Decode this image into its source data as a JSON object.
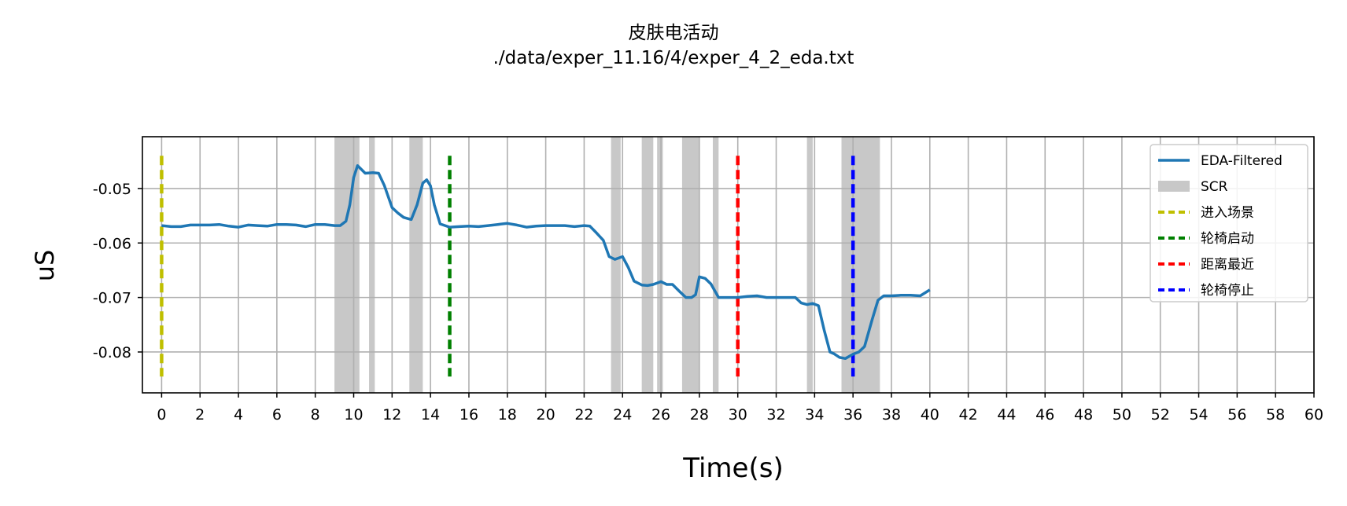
{
  "chart_data": {
    "type": "line",
    "title": "皮肤电活动",
    "subtitle": "./data/exper_11.16/4/exper_4_2_eda.txt",
    "xlabel": "Time(s)",
    "ylabel": "uS",
    "xlim": [
      -1,
      60
    ],
    "ylim": [
      -0.0875,
      -0.0405
    ],
    "xticks": [
      0,
      2,
      4,
      6,
      8,
      10,
      12,
      14,
      16,
      18,
      20,
      22,
      24,
      26,
      28,
      30,
      32,
      34,
      36,
      38,
      40,
      42,
      44,
      46,
      48,
      50,
      52,
      54,
      56,
      58,
      60
    ],
    "yticks": [
      -0.05,
      -0.06,
      -0.07,
      -0.08
    ],
    "ytick_labels": [
      "-0.05",
      "-0.06",
      "-0.07",
      "-0.08"
    ],
    "grid": true,
    "legend_position": "top-right",
    "series": [
      {
        "name": "EDA-Filtered",
        "color": "#1f77b4",
        "x": [
          0,
          0.5,
          1,
          1.5,
          2,
          2.5,
          3,
          3.5,
          4,
          4.5,
          5,
          5.5,
          6,
          6.5,
          7,
          7.5,
          8,
          8.5,
          9,
          9.3,
          9.6,
          9.8,
          10,
          10.2,
          10.4,
          10.6,
          11,
          11.3,
          11.6,
          12,
          12.3,
          12.6,
          13,
          13.3,
          13.6,
          13.8,
          14,
          14.2,
          14.5,
          15,
          15.5,
          16,
          16.5,
          17,
          17.5,
          18,
          18.5,
          19,
          19.5,
          20,
          20.5,
          21,
          21.5,
          22,
          22.3,
          22.6,
          23,
          23.3,
          23.6,
          24,
          24.3,
          24.6,
          25,
          25.3,
          25.6,
          26,
          26.3,
          26.6,
          27,
          27.3,
          27.6,
          27.8,
          28,
          28.3,
          28.6,
          29,
          29.5,
          30,
          30.5,
          31,
          31.5,
          32,
          32.5,
          33,
          33.3,
          33.6,
          33.9,
          34.2,
          34.5,
          34.8,
          35,
          35.3,
          35.6,
          36,
          36.3,
          36.6,
          37,
          37.3,
          37.6,
          38,
          38.5,
          39,
          39.5,
          40
        ],
        "values": [
          -0.0568,
          -0.057,
          -0.057,
          -0.0567,
          -0.0567,
          -0.0567,
          -0.0566,
          -0.0569,
          -0.0571,
          -0.0567,
          -0.0568,
          -0.0569,
          -0.0566,
          -0.0566,
          -0.0567,
          -0.057,
          -0.0566,
          -0.0566,
          -0.0568,
          -0.0568,
          -0.056,
          -0.053,
          -0.048,
          -0.0458,
          -0.0465,
          -0.0472,
          -0.0471,
          -0.0472,
          -0.0495,
          -0.0535,
          -0.0545,
          -0.0553,
          -0.0557,
          -0.053,
          -0.049,
          -0.0484,
          -0.0495,
          -0.053,
          -0.0565,
          -0.0571,
          -0.057,
          -0.0569,
          -0.057,
          -0.0568,
          -0.0566,
          -0.0564,
          -0.0567,
          -0.0571,
          -0.0569,
          -0.0568,
          -0.0568,
          -0.0568,
          -0.057,
          -0.0568,
          -0.0569,
          -0.058,
          -0.0595,
          -0.0625,
          -0.063,
          -0.0625,
          -0.0645,
          -0.067,
          -0.0677,
          -0.0678,
          -0.0676,
          -0.0671,
          -0.0676,
          -0.0676,
          -0.069,
          -0.07,
          -0.07,
          -0.0695,
          -0.0662,
          -0.0665,
          -0.0675,
          -0.07,
          -0.07,
          -0.07,
          -0.0698,
          -0.0697,
          -0.07,
          -0.07,
          -0.07,
          -0.07,
          -0.071,
          -0.0713,
          -0.0711,
          -0.0715,
          -0.076,
          -0.08,
          -0.0803,
          -0.081,
          -0.0812,
          -0.0804,
          -0.08,
          -0.079,
          -0.074,
          -0.0705,
          -0.0697,
          -0.0697,
          -0.0696,
          -0.0696,
          -0.0697,
          -0.0686
        ]
      }
    ],
    "scr_regions": {
      "name": "SCR",
      "color": "#c8c8c8",
      "spans": [
        [
          9.0,
          10.3
        ],
        [
          10.8,
          11.1
        ],
        [
          12.9,
          13.6
        ],
        [
          23.4,
          23.9
        ],
        [
          25.0,
          25.6
        ],
        [
          25.8,
          26.1
        ],
        [
          27.1,
          28.0
        ],
        [
          28.7,
          29.0
        ],
        [
          33.6,
          33.9
        ],
        [
          35.4,
          37.4
        ]
      ]
    },
    "markers": [
      {
        "name": "进入场景",
        "x": 0,
        "color": "#bfbf00"
      },
      {
        "name": "轮椅启动",
        "x": 15,
        "color": "#008000"
      },
      {
        "name": "距离最近",
        "x": 30,
        "color": "#ff0000"
      },
      {
        "name": "轮椅停止",
        "x": 36,
        "color": "#0000ff"
      }
    ],
    "marker_range": [
      -0.0845,
      -0.044
    ]
  }
}
